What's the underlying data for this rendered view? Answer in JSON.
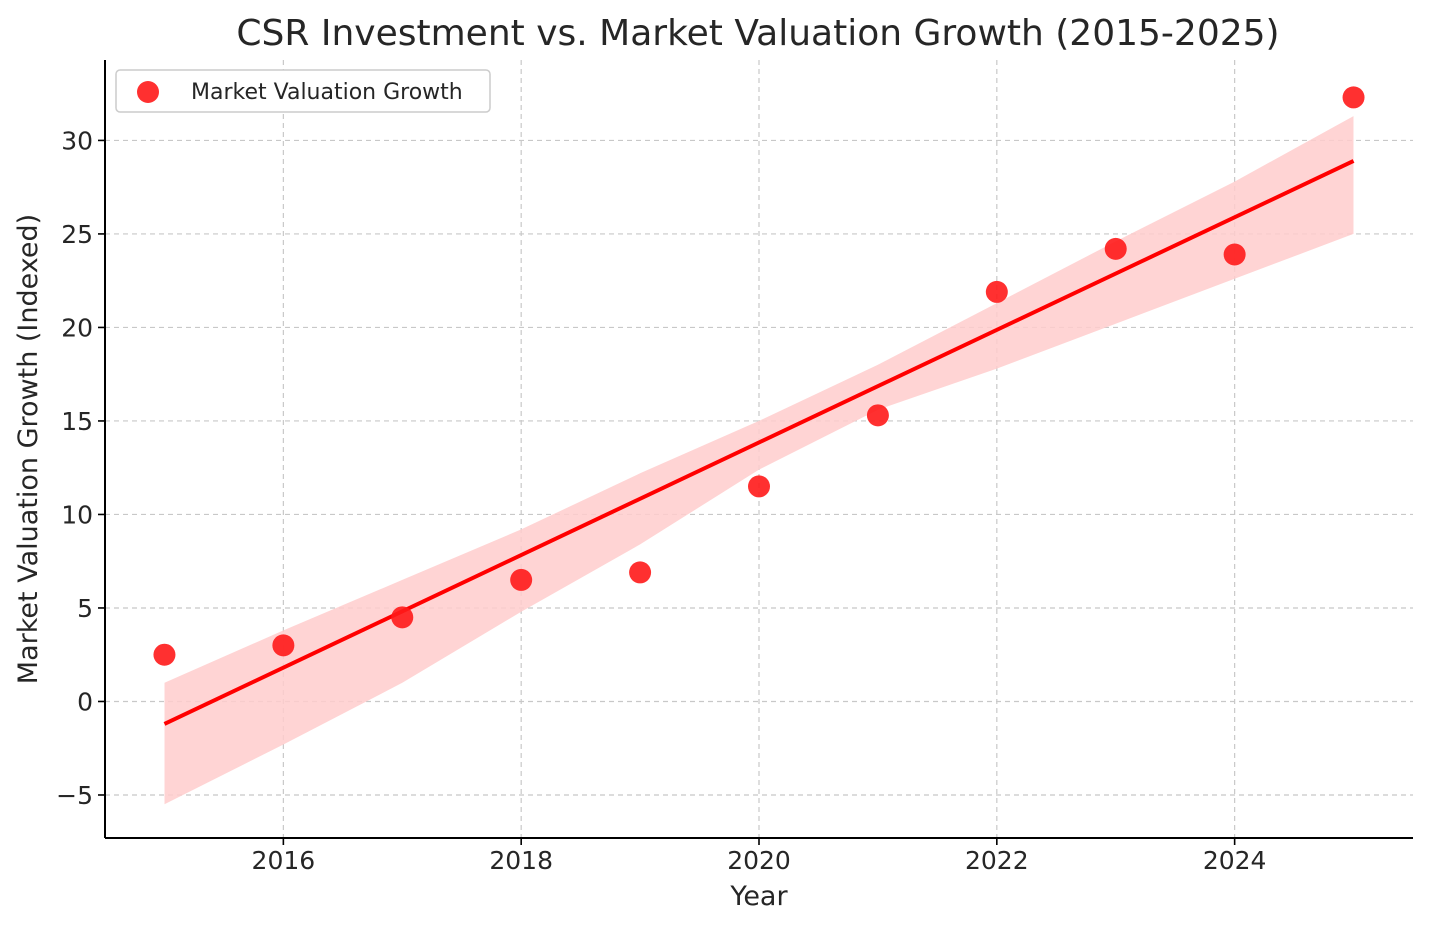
{
  "chart_data": {
    "type": "scatter",
    "title": "CSR Investment vs. Market Valuation Growth (2015-2025)",
    "xlabel": "Year",
    "ylabel": "Market Valuation Growth (Indexed)",
    "xlim": [
      2014.5,
      2025.5
    ],
    "ylim": [
      -7.3,
      34.3
    ],
    "xticks": [
      2016,
      2018,
      2020,
      2022,
      2024
    ],
    "yticks": [
      -5,
      0,
      5,
      10,
      15,
      20,
      25,
      30
    ],
    "ytick_labels": [
      "−5",
      "0",
      "5",
      "10",
      "15",
      "20",
      "25",
      "30"
    ],
    "grid": true,
    "legend_position": "upper-left",
    "series": [
      {
        "name": "Market Valuation Growth",
        "color": "#ff1a1a",
        "x": [
          2015,
          2016,
          2017,
          2018,
          2019,
          2020,
          2021,
          2022,
          2023,
          2024,
          2025
        ],
        "y": [
          2.5,
          3.0,
          4.5,
          6.5,
          6.9,
          11.5,
          15.3,
          21.9,
          24.2,
          23.9,
          32.3
        ]
      }
    ],
    "regression": {
      "color": "#ff0000",
      "x": [
        2015,
        2025
      ],
      "y": [
        -1.2,
        28.9
      ]
    },
    "confidence_band": {
      "color": "#ffcccc",
      "x": [
        2015,
        2016,
        2017,
        2018,
        2019,
        2020,
        2021,
        2022,
        2023,
        2024,
        2025
      ],
      "upper": [
        1.0,
        3.8,
        6.5,
        9.2,
        12.2,
        15.0,
        18.0,
        21.3,
        24.6,
        27.8,
        31.3
      ],
      "lower": [
        -5.5,
        -2.3,
        1.0,
        4.8,
        8.4,
        12.4,
        15.6,
        17.8,
        20.2,
        22.6,
        25.0
      ]
    }
  }
}
